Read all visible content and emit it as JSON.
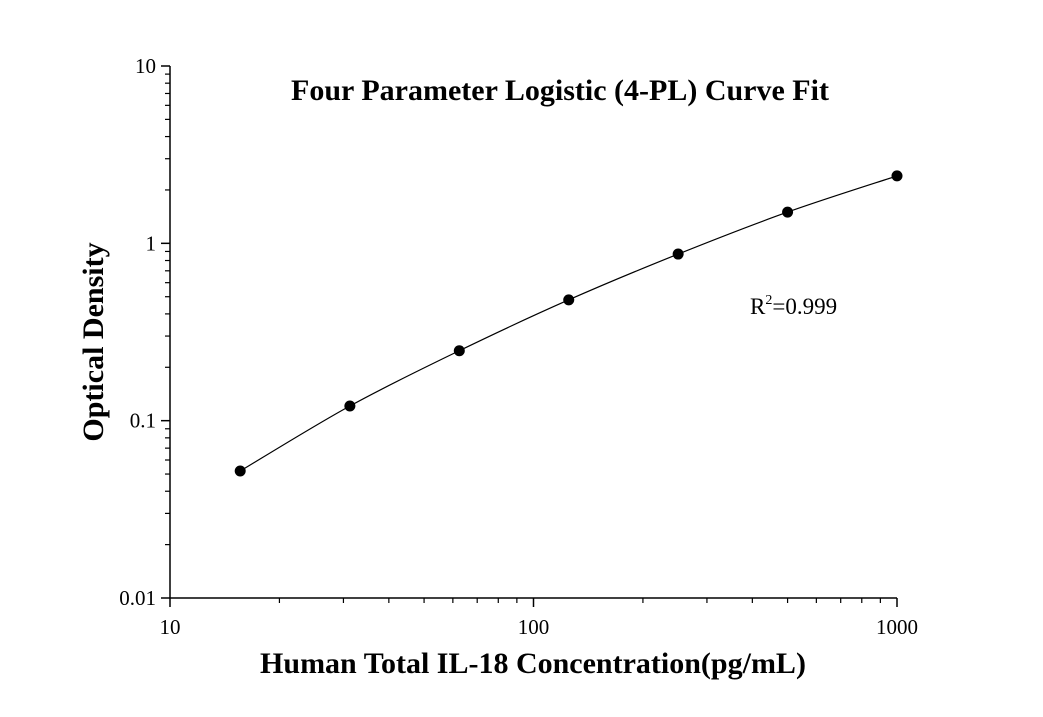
{
  "chart_data": {
    "type": "scatter",
    "title": "Four Parameter Logistic (4-PL) Curve Fit",
    "xlabel": "Human Total IL-18 Concentration(pg/mL)",
    "ylabel": "Optical Density",
    "x_scale": "log",
    "y_scale": "log",
    "xlim": [
      10,
      1000
    ],
    "ylim": [
      0.01,
      10
    ],
    "x_ticks": [
      {
        "value": 10,
        "label": "10"
      },
      {
        "value": 100,
        "label": "100"
      },
      {
        "value": 1000,
        "label": "1000"
      }
    ],
    "y_ticks": [
      {
        "value": 0.01,
        "label": "0.01"
      },
      {
        "value": 0.1,
        "label": "0.1"
      },
      {
        "value": 1,
        "label": "1"
      },
      {
        "value": 10,
        "label": "10"
      }
    ],
    "grid": false,
    "series": [
      {
        "points": [
          {
            "x": 15.6,
            "y": 0.052
          },
          {
            "x": 31.25,
            "y": 0.121
          },
          {
            "x": 62.5,
            "y": 0.248
          },
          {
            "x": 125,
            "y": 0.48
          },
          {
            "x": 250,
            "y": 0.87
          },
          {
            "x": 500,
            "y": 1.5
          },
          {
            "x": 1000,
            "y": 2.4
          }
        ],
        "color": "#000000",
        "fit_line": true
      }
    ],
    "annotation": {
      "base": "R",
      "sup": "2",
      "rest": "=0.999"
    }
  }
}
